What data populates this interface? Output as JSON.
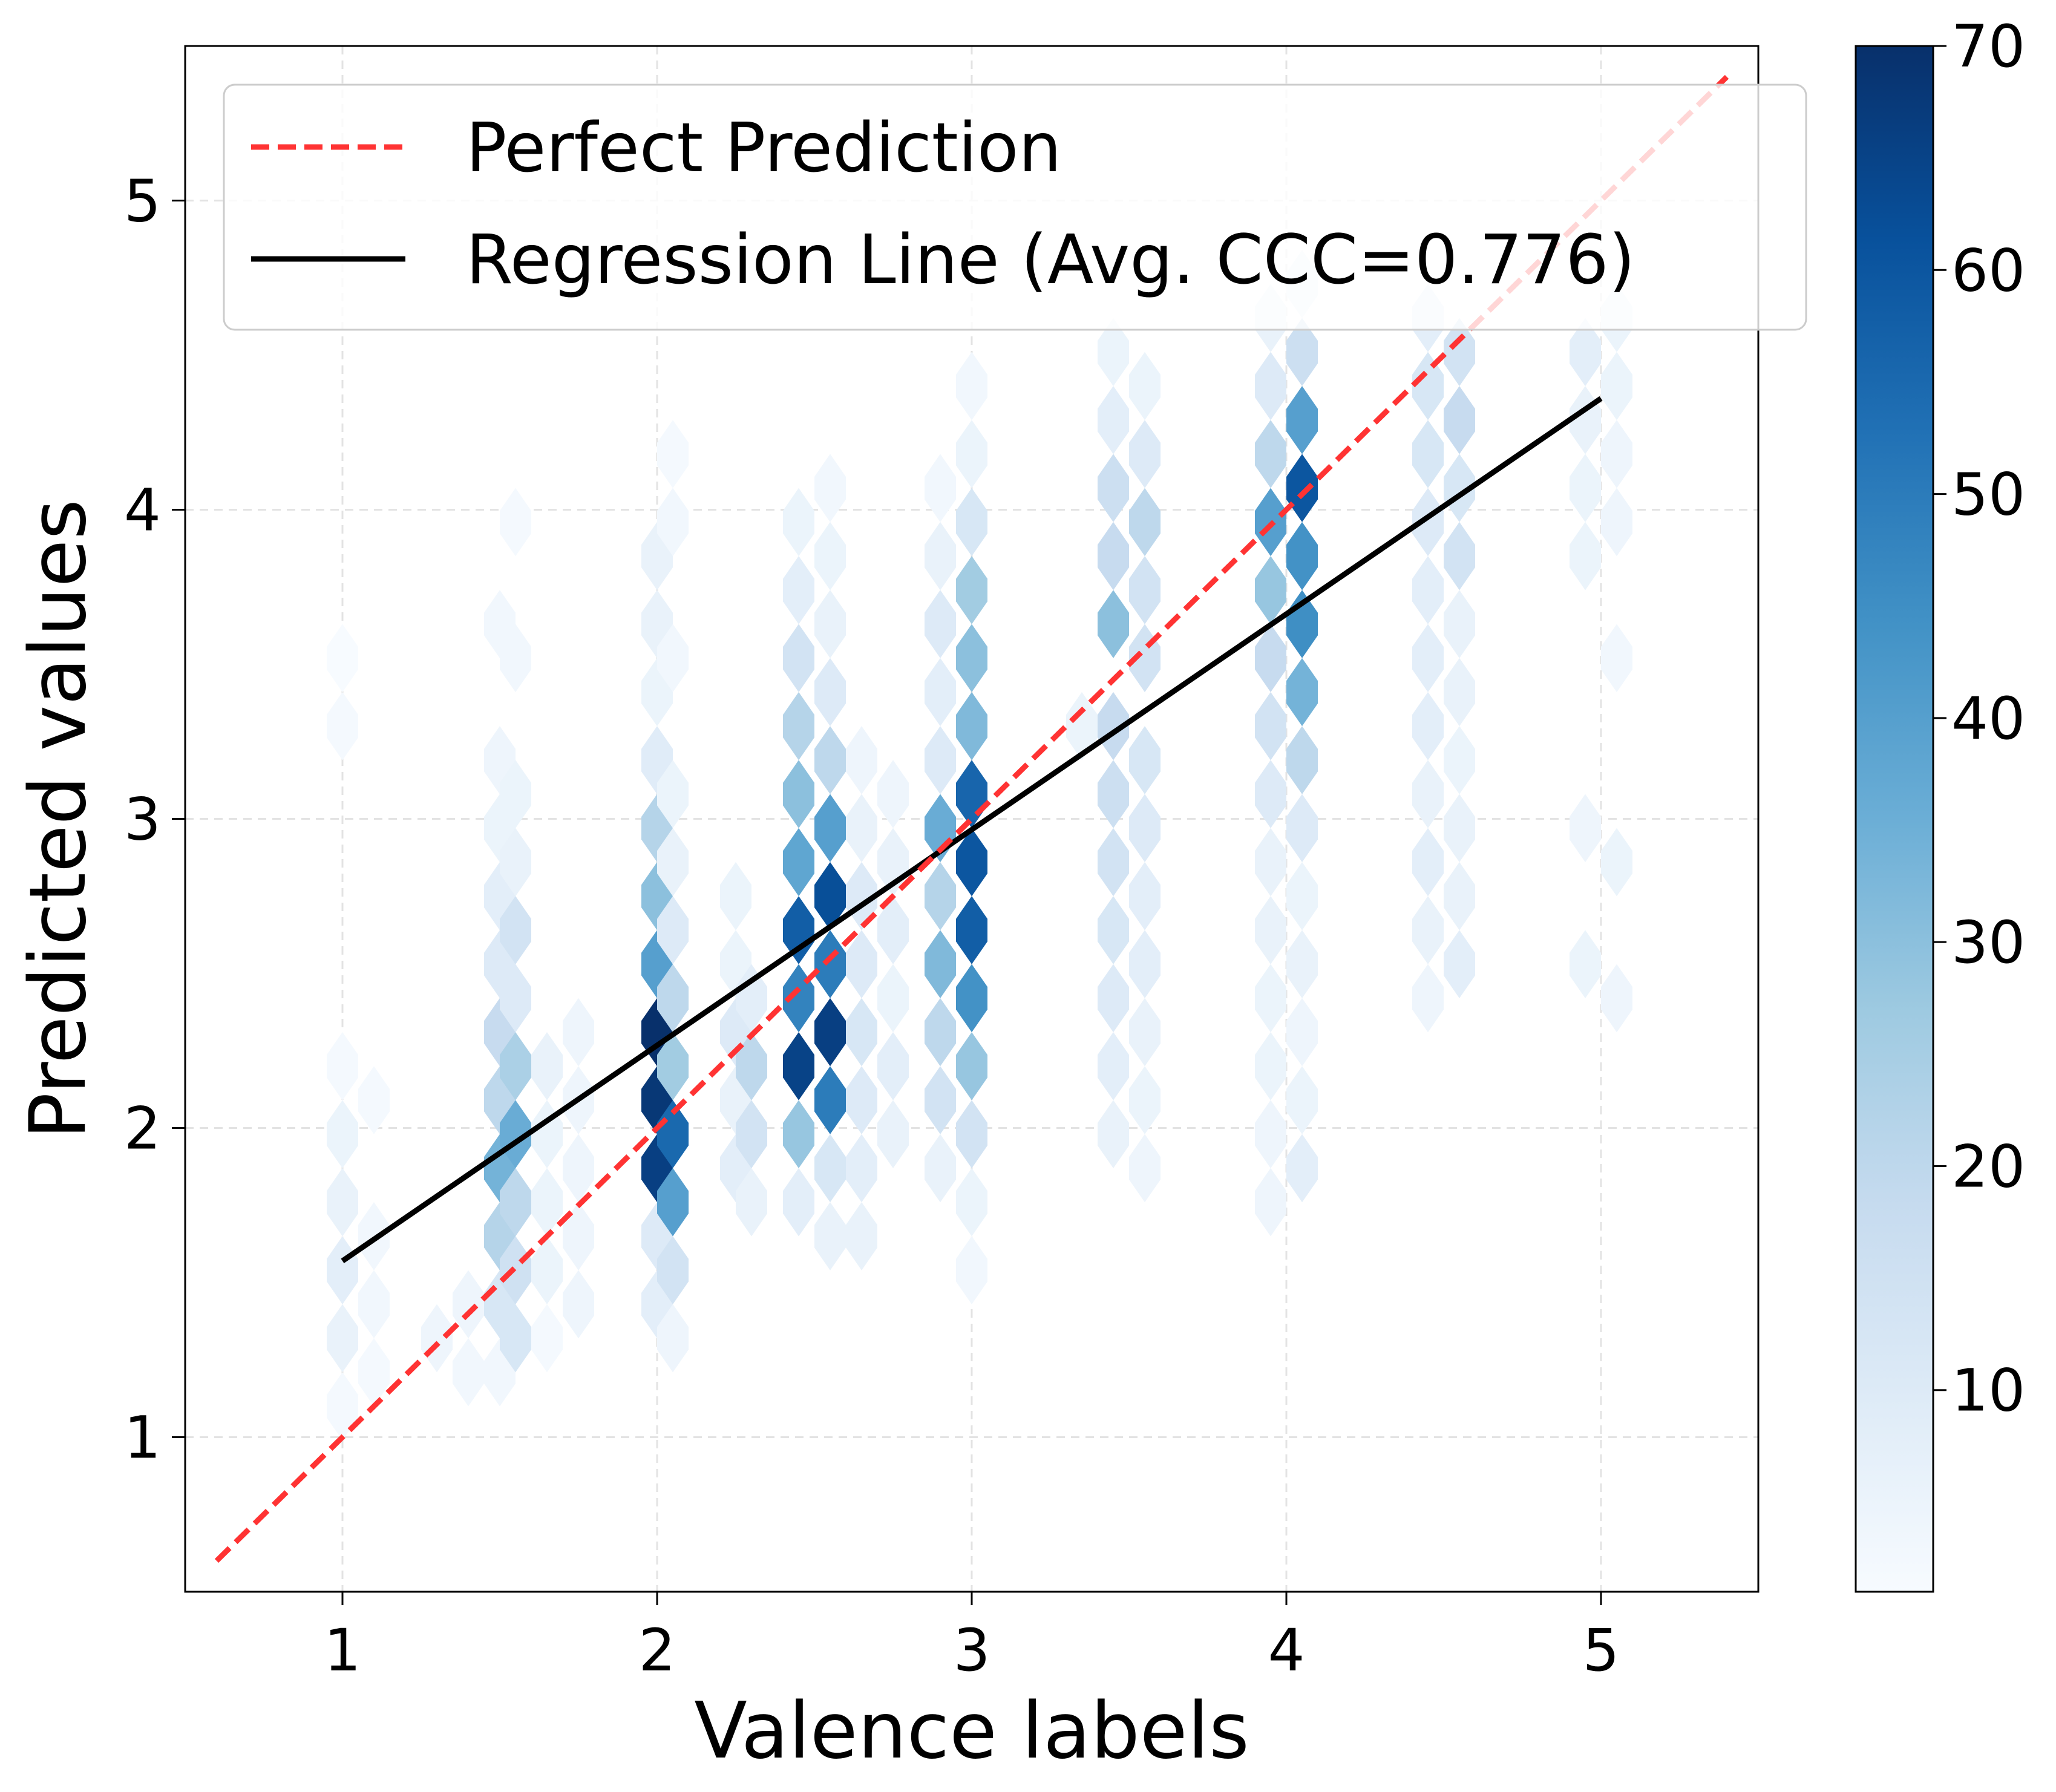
{
  "chart_data": {
    "type": "heatmap",
    "subtype": "hexbin",
    "title": "",
    "xlabel": "Valence labels",
    "ylabel": "Predicted values",
    "xlim": [
      0.5,
      5.5
    ],
    "ylim": [
      0.5,
      5.5
    ],
    "xticks": [
      1,
      2,
      3,
      4,
      5
    ],
    "yticks": [
      1,
      2,
      3,
      4,
      5
    ],
    "grid": true,
    "colormap": "Blues",
    "colorbar": {
      "min": 1,
      "max": 70,
      "ticks": [
        10,
        20,
        30,
        40,
        50,
        60,
        70
      ]
    },
    "legend": {
      "placement": "upper-left",
      "entries": [
        {
          "label": "Perfect Prediction",
          "style": "dashed",
          "color": "#ff3333"
        },
        {
          "label": "Regression Line (Avg. CCC=0.776)",
          "style": "solid",
          "color": "#000000"
        }
      ]
    },
    "lines": [
      {
        "name": "Perfect Prediction",
        "x": [
          0.6,
          5.4
        ],
        "y": [
          0.6,
          5.4
        ],
        "color": "#ff3333",
        "dashed": true
      },
      {
        "name": "Regression Line",
        "x": [
          1.0,
          5.0
        ],
        "y": [
          1.57,
          4.36
        ],
        "color": "#000000",
        "dashed": false
      }
    ],
    "hexbins": [
      {
        "x": 1.0,
        "y": 1.1,
        "count": 2
      },
      {
        "x": 1.0,
        "y": 1.32,
        "count": 6
      },
      {
        "x": 1.0,
        "y": 1.54,
        "count": 8
      },
      {
        "x": 1.0,
        "y": 1.76,
        "count": 6
      },
      {
        "x": 1.0,
        "y": 1.98,
        "count": 5
      },
      {
        "x": 1.0,
        "y": 2.2,
        "count": 2
      },
      {
        "x": 1.0,
        "y": 3.3,
        "count": 2
      },
      {
        "x": 1.0,
        "y": 3.52,
        "count": 1
      },
      {
        "x": 1.1,
        "y": 1.21,
        "count": 2
      },
      {
        "x": 1.1,
        "y": 1.43,
        "count": 3
      },
      {
        "x": 1.1,
        "y": 1.65,
        "count": 3
      },
      {
        "x": 1.1,
        "y": 2.09,
        "count": 2
      },
      {
        "x": 1.3,
        "y": 1.32,
        "count": 4
      },
      {
        "x": 1.4,
        "y": 1.21,
        "count": 3
      },
      {
        "x": 1.4,
        "y": 1.43,
        "count": 4
      },
      {
        "x": 1.5,
        "y": 1.21,
        "count": 3
      },
      {
        "x": 1.5,
        "y": 1.43,
        "count": 12
      },
      {
        "x": 1.5,
        "y": 1.65,
        "count": 22
      },
      {
        "x": 1.5,
        "y": 1.87,
        "count": 34
      },
      {
        "x": 1.5,
        "y": 2.09,
        "count": 20
      },
      {
        "x": 1.5,
        "y": 2.31,
        "count": 18
      },
      {
        "x": 1.5,
        "y": 2.53,
        "count": 10
      },
      {
        "x": 1.5,
        "y": 2.75,
        "count": 8
      },
      {
        "x": 1.5,
        "y": 2.97,
        "count": 5
      },
      {
        "x": 1.5,
        "y": 3.19,
        "count": 4
      },
      {
        "x": 1.5,
        "y": 3.63,
        "count": 3
      },
      {
        "x": 1.55,
        "y": 1.32,
        "count": 12
      },
      {
        "x": 1.55,
        "y": 1.54,
        "count": 15
      },
      {
        "x": 1.55,
        "y": 1.76,
        "count": 20
      },
      {
        "x": 1.55,
        "y": 1.98,
        "count": 36
      },
      {
        "x": 1.55,
        "y": 2.2,
        "count": 24
      },
      {
        "x": 1.55,
        "y": 2.42,
        "count": 10
      },
      {
        "x": 1.55,
        "y": 2.64,
        "count": 14
      },
      {
        "x": 1.55,
        "y": 2.86,
        "count": 6
      },
      {
        "x": 1.55,
        "y": 3.08,
        "count": 5
      },
      {
        "x": 1.55,
        "y": 3.52,
        "count": 3
      },
      {
        "x": 1.55,
        "y": 3.96,
        "count": 2
      },
      {
        "x": 1.65,
        "y": 1.32,
        "count": 2
      },
      {
        "x": 1.65,
        "y": 1.54,
        "count": 5
      },
      {
        "x": 1.65,
        "y": 1.76,
        "count": 5
      },
      {
        "x": 1.65,
        "y": 1.98,
        "count": 5
      },
      {
        "x": 1.65,
        "y": 2.2,
        "count": 6
      },
      {
        "x": 1.75,
        "y": 1.43,
        "count": 4
      },
      {
        "x": 1.75,
        "y": 1.65,
        "count": 4
      },
      {
        "x": 1.75,
        "y": 1.87,
        "count": 4
      },
      {
        "x": 1.75,
        "y": 2.09,
        "count": 4
      },
      {
        "x": 1.75,
        "y": 2.31,
        "count": 4
      },
      {
        "x": 2.0,
        "y": 1.43,
        "count": 8
      },
      {
        "x": 2.0,
        "y": 1.65,
        "count": 10
      },
      {
        "x": 2.0,
        "y": 1.87,
        "count": 66
      },
      {
        "x": 2.0,
        "y": 2.09,
        "count": 68
      },
      {
        "x": 2.0,
        "y": 2.31,
        "count": 70
      },
      {
        "x": 2.0,
        "y": 2.53,
        "count": 40
      },
      {
        "x": 2.0,
        "y": 2.75,
        "count": 30
      },
      {
        "x": 2.0,
        "y": 2.97,
        "count": 22
      },
      {
        "x": 2.0,
        "y": 3.19,
        "count": 9
      },
      {
        "x": 2.0,
        "y": 3.41,
        "count": 5
      },
      {
        "x": 2.0,
        "y": 3.63,
        "count": 6
      },
      {
        "x": 2.0,
        "y": 3.85,
        "count": 6
      },
      {
        "x": 2.05,
        "y": 1.32,
        "count": 4
      },
      {
        "x": 2.05,
        "y": 1.54,
        "count": 14
      },
      {
        "x": 2.05,
        "y": 1.76,
        "count": 40
      },
      {
        "x": 2.05,
        "y": 1.98,
        "count": 55
      },
      {
        "x": 2.05,
        "y": 2.2,
        "count": 26
      },
      {
        "x": 2.05,
        "y": 2.42,
        "count": 20
      },
      {
        "x": 2.05,
        "y": 2.64,
        "count": 10
      },
      {
        "x": 2.05,
        "y": 2.86,
        "count": 6
      },
      {
        "x": 2.05,
        "y": 3.08,
        "count": 5
      },
      {
        "x": 2.05,
        "y": 3.52,
        "count": 3
      },
      {
        "x": 2.05,
        "y": 3.96,
        "count": 3
      },
      {
        "x": 2.05,
        "y": 4.18,
        "count": 2
      },
      {
        "x": 2.25,
        "y": 1.87,
        "count": 8
      },
      {
        "x": 2.25,
        "y": 2.09,
        "count": 6
      },
      {
        "x": 2.25,
        "y": 2.31,
        "count": 10
      },
      {
        "x": 2.25,
        "y": 2.53,
        "count": 5
      },
      {
        "x": 2.25,
        "y": 2.75,
        "count": 5
      },
      {
        "x": 2.3,
        "y": 1.76,
        "count": 6
      },
      {
        "x": 2.3,
        "y": 1.98,
        "count": 14
      },
      {
        "x": 2.3,
        "y": 2.2,
        "count": 20
      },
      {
        "x": 2.3,
        "y": 2.42,
        "count": 8
      },
      {
        "x": 2.45,
        "y": 1.76,
        "count": 8
      },
      {
        "x": 2.45,
        "y": 1.98,
        "count": 28
      },
      {
        "x": 2.45,
        "y": 2.2,
        "count": 65
      },
      {
        "x": 2.45,
        "y": 2.42,
        "count": 48
      },
      {
        "x": 2.45,
        "y": 2.64,
        "count": 58
      },
      {
        "x": 2.45,
        "y": 2.86,
        "count": 38
      },
      {
        "x": 2.45,
        "y": 3.08,
        "count": 30
      },
      {
        "x": 2.45,
        "y": 3.3,
        "count": 22
      },
      {
        "x": 2.45,
        "y": 3.52,
        "count": 14
      },
      {
        "x": 2.45,
        "y": 3.74,
        "count": 8
      },
      {
        "x": 2.45,
        "y": 3.96,
        "count": 5
      },
      {
        "x": 2.55,
        "y": 1.65,
        "count": 6
      },
      {
        "x": 2.55,
        "y": 1.87,
        "count": 12
      },
      {
        "x": 2.55,
        "y": 2.09,
        "count": 50
      },
      {
        "x": 2.55,
        "y": 2.31,
        "count": 66
      },
      {
        "x": 2.55,
        "y": 2.53,
        "count": 50
      },
      {
        "x": 2.55,
        "y": 2.75,
        "count": 62
      },
      {
        "x": 2.55,
        "y": 2.97,
        "count": 40
      },
      {
        "x": 2.55,
        "y": 3.19,
        "count": 20
      },
      {
        "x": 2.55,
        "y": 3.41,
        "count": 10
      },
      {
        "x": 2.55,
        "y": 3.63,
        "count": 6
      },
      {
        "x": 2.55,
        "y": 3.85,
        "count": 5
      },
      {
        "x": 2.55,
        "y": 4.07,
        "count": 3
      },
      {
        "x": 2.65,
        "y": 1.65,
        "count": 6
      },
      {
        "x": 2.65,
        "y": 1.87,
        "count": 8
      },
      {
        "x": 2.65,
        "y": 2.09,
        "count": 10
      },
      {
        "x": 2.65,
        "y": 2.31,
        "count": 12
      },
      {
        "x": 2.65,
        "y": 2.53,
        "count": 10
      },
      {
        "x": 2.65,
        "y": 2.75,
        "count": 10
      },
      {
        "x": 2.65,
        "y": 2.97,
        "count": 6
      },
      {
        "x": 2.65,
        "y": 3.19,
        "count": 4
      },
      {
        "x": 2.75,
        "y": 1.98,
        "count": 6
      },
      {
        "x": 2.75,
        "y": 2.2,
        "count": 8
      },
      {
        "x": 2.75,
        "y": 2.42,
        "count": 5
      },
      {
        "x": 2.75,
        "y": 2.64,
        "count": 8
      },
      {
        "x": 2.75,
        "y": 2.86,
        "count": 6
      },
      {
        "x": 2.75,
        "y": 3.08,
        "count": 4
      },
      {
        "x": 2.9,
        "y": 1.87,
        "count": 6
      },
      {
        "x": 2.9,
        "y": 2.09,
        "count": 14
      },
      {
        "x": 2.9,
        "y": 2.31,
        "count": 20
      },
      {
        "x": 2.9,
        "y": 2.53,
        "count": 32
      },
      {
        "x": 2.9,
        "y": 2.75,
        "count": 22
      },
      {
        "x": 2.9,
        "y": 2.97,
        "count": 36
      },
      {
        "x": 2.9,
        "y": 3.19,
        "count": 10
      },
      {
        "x": 2.9,
        "y": 3.41,
        "count": 8
      },
      {
        "x": 2.9,
        "y": 3.63,
        "count": 10
      },
      {
        "x": 2.9,
        "y": 3.85,
        "count": 6
      },
      {
        "x": 2.9,
        "y": 4.07,
        "count": 3
      },
      {
        "x": 3.0,
        "y": 1.54,
        "count": 3
      },
      {
        "x": 3.0,
        "y": 1.76,
        "count": 5
      },
      {
        "x": 3.0,
        "y": 1.98,
        "count": 14
      },
      {
        "x": 3.0,
        "y": 2.2,
        "count": 28
      },
      {
        "x": 3.0,
        "y": 2.42,
        "count": 44
      },
      {
        "x": 3.0,
        "y": 2.64,
        "count": 58
      },
      {
        "x": 3.0,
        "y": 2.86,
        "count": 60
      },
      {
        "x": 3.0,
        "y": 3.08,
        "count": 56
      },
      {
        "x": 3.0,
        "y": 3.3,
        "count": 32
      },
      {
        "x": 3.0,
        "y": 3.52,
        "count": 30
      },
      {
        "x": 3.0,
        "y": 3.74,
        "count": 26
      },
      {
        "x": 3.0,
        "y": 3.96,
        "count": 12
      },
      {
        "x": 3.0,
        "y": 4.18,
        "count": 5
      },
      {
        "x": 3.0,
        "y": 4.4,
        "count": 3
      },
      {
        "x": 3.35,
        "y": 3.3,
        "count": 5
      },
      {
        "x": 3.45,
        "y": 1.98,
        "count": 6
      },
      {
        "x": 3.45,
        "y": 2.2,
        "count": 8
      },
      {
        "x": 3.45,
        "y": 2.42,
        "count": 10
      },
      {
        "x": 3.45,
        "y": 2.64,
        "count": 12
      },
      {
        "x": 3.45,
        "y": 2.86,
        "count": 14
      },
      {
        "x": 3.45,
        "y": 3.08,
        "count": 16
      },
      {
        "x": 3.45,
        "y": 3.3,
        "count": 18
      },
      {
        "x": 3.45,
        "y": 3.63,
        "count": 30
      },
      {
        "x": 3.45,
        "y": 3.85,
        "count": 18
      },
      {
        "x": 3.45,
        "y": 4.07,
        "count": 16
      },
      {
        "x": 3.45,
        "y": 4.29,
        "count": 8
      },
      {
        "x": 3.45,
        "y": 4.51,
        "count": 5
      },
      {
        "x": 3.55,
        "y": 1.87,
        "count": 4
      },
      {
        "x": 3.55,
        "y": 2.09,
        "count": 5
      },
      {
        "x": 3.55,
        "y": 2.31,
        "count": 6
      },
      {
        "x": 3.55,
        "y": 2.53,
        "count": 8
      },
      {
        "x": 3.55,
        "y": 2.75,
        "count": 8
      },
      {
        "x": 3.55,
        "y": 2.97,
        "count": 10
      },
      {
        "x": 3.55,
        "y": 3.19,
        "count": 12
      },
      {
        "x": 3.55,
        "y": 3.52,
        "count": 14
      },
      {
        "x": 3.55,
        "y": 3.74,
        "count": 14
      },
      {
        "x": 3.55,
        "y": 3.96,
        "count": 20
      },
      {
        "x": 3.55,
        "y": 4.18,
        "count": 10
      },
      {
        "x": 3.55,
        "y": 4.4,
        "count": 5
      },
      {
        "x": 3.95,
        "y": 1.76,
        "count": 4
      },
      {
        "x": 3.95,
        "y": 1.98,
        "count": 4
      },
      {
        "x": 3.95,
        "y": 2.2,
        "count": 5
      },
      {
        "x": 3.95,
        "y": 2.42,
        "count": 5
      },
      {
        "x": 3.95,
        "y": 2.64,
        "count": 6
      },
      {
        "x": 3.95,
        "y": 2.86,
        "count": 6
      },
      {
        "x": 3.95,
        "y": 3.08,
        "count": 10
      },
      {
        "x": 3.95,
        "y": 3.3,
        "count": 14
      },
      {
        "x": 3.95,
        "y": 3.52,
        "count": 18
      },
      {
        "x": 3.95,
        "y": 3.74,
        "count": 28
      },
      {
        "x": 3.95,
        "y": 3.96,
        "count": 40
      },
      {
        "x": 3.95,
        "y": 4.18,
        "count": 20
      },
      {
        "x": 3.95,
        "y": 4.4,
        "count": 10
      },
      {
        "x": 3.95,
        "y": 4.62,
        "count": 6
      },
      {
        "x": 4.05,
        "y": 1.87,
        "count": 8
      },
      {
        "x": 4.05,
        "y": 2.09,
        "count": 5
      },
      {
        "x": 4.05,
        "y": 2.31,
        "count": 4
      },
      {
        "x": 4.05,
        "y": 2.53,
        "count": 6
      },
      {
        "x": 4.05,
        "y": 2.75,
        "count": 5
      },
      {
        "x": 4.05,
        "y": 2.97,
        "count": 10
      },
      {
        "x": 4.05,
        "y": 3.19,
        "count": 20
      },
      {
        "x": 4.05,
        "y": 3.41,
        "count": 34
      },
      {
        "x": 4.05,
        "y": 3.63,
        "count": 45
      },
      {
        "x": 4.05,
        "y": 3.85,
        "count": 44
      },
      {
        "x": 4.05,
        "y": 4.07,
        "count": 60
      },
      {
        "x": 4.05,
        "y": 4.29,
        "count": 40
      },
      {
        "x": 4.05,
        "y": 4.51,
        "count": 16
      },
      {
        "x": 4.05,
        "y": 4.73,
        "count": 6
      },
      {
        "x": 4.45,
        "y": 2.42,
        "count": 4
      },
      {
        "x": 4.45,
        "y": 2.64,
        "count": 6
      },
      {
        "x": 4.45,
        "y": 2.86,
        "count": 8
      },
      {
        "x": 4.45,
        "y": 3.08,
        "count": 6
      },
      {
        "x": 4.45,
        "y": 3.3,
        "count": 8
      },
      {
        "x": 4.45,
        "y": 3.52,
        "count": 8
      },
      {
        "x": 4.45,
        "y": 3.74,
        "count": 8
      },
      {
        "x": 4.45,
        "y": 3.96,
        "count": 10
      },
      {
        "x": 4.45,
        "y": 4.18,
        "count": 12
      },
      {
        "x": 4.45,
        "y": 4.4,
        "count": 12
      },
      {
        "x": 4.45,
        "y": 4.62,
        "count": 8
      },
      {
        "x": 4.55,
        "y": 2.53,
        "count": 8
      },
      {
        "x": 4.55,
        "y": 2.75,
        "count": 6
      },
      {
        "x": 4.55,
        "y": 2.97,
        "count": 6
      },
      {
        "x": 4.55,
        "y": 3.19,
        "count": 5
      },
      {
        "x": 4.55,
        "y": 3.41,
        "count": 6
      },
      {
        "x": 4.55,
        "y": 3.63,
        "count": 6
      },
      {
        "x": 4.55,
        "y": 3.85,
        "count": 14
      },
      {
        "x": 4.55,
        "y": 4.07,
        "count": 12
      },
      {
        "x": 4.55,
        "y": 4.29,
        "count": 18
      },
      {
        "x": 4.55,
        "y": 4.51,
        "count": 14
      },
      {
        "x": 4.95,
        "y": 2.53,
        "count": 5
      },
      {
        "x": 4.95,
        "y": 2.97,
        "count": 4
      },
      {
        "x": 4.95,
        "y": 3.85,
        "count": 5
      },
      {
        "x": 4.95,
        "y": 4.07,
        "count": 5
      },
      {
        "x": 4.95,
        "y": 4.29,
        "count": 6
      },
      {
        "x": 4.95,
        "y": 4.51,
        "count": 8
      },
      {
        "x": 5.05,
        "y": 2.42,
        "count": 4
      },
      {
        "x": 5.05,
        "y": 2.86,
        "count": 5
      },
      {
        "x": 5.05,
        "y": 3.52,
        "count": 3
      },
      {
        "x": 5.05,
        "y": 3.96,
        "count": 4
      },
      {
        "x": 5.05,
        "y": 4.18,
        "count": 4
      },
      {
        "x": 5.05,
        "y": 4.4,
        "count": 5
      },
      {
        "x": 5.05,
        "y": 4.62,
        "count": 5
      }
    ]
  }
}
